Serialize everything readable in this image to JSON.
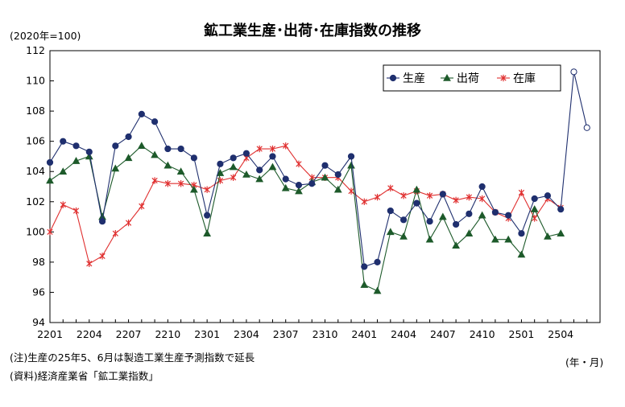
{
  "chart_data": {
    "type": "line",
    "title": "鉱工業生産･出荷･在庫指数の推移",
    "unit_label": "(2020年=100)",
    "x_axis_label": "(年・月)",
    "notes": [
      "(注)生産の25年5、6月は製造工業生産予測指数で延長",
      "(資料)経済産業省「鉱工業指数」"
    ],
    "ylim": [
      94,
      112
    ],
    "yticks": [
      94,
      96,
      98,
      100,
      102,
      104,
      106,
      108,
      110,
      112
    ],
    "grid": false,
    "legend_position": "top-right",
    "categories": [
      "2201",
      "2202",
      "2203",
      "2204",
      "2205",
      "2206",
      "2207",
      "2208",
      "2209",
      "2210",
      "2211",
      "2212",
      "2301",
      "2302",
      "2303",
      "2304",
      "2305",
      "2306",
      "2307",
      "2308",
      "2309",
      "2310",
      "2311",
      "2312",
      "2401",
      "2402",
      "2403",
      "2404",
      "2405",
      "2406",
      "2407",
      "2408",
      "2409",
      "2410",
      "2411",
      "2412",
      "2501",
      "2502",
      "2503",
      "2504",
      "2505",
      "2506"
    ],
    "xtick_labels": [
      "2201",
      "2204",
      "2207",
      "2210",
      "2301",
      "2304",
      "2307",
      "2310",
      "2401",
      "2404",
      "2407",
      "2410",
      "2501",
      "2504"
    ],
    "forecast_note_months": [
      "2505",
      "2506"
    ],
    "series": [
      {
        "name": "生産",
        "color": "#1f2f6e",
        "marker": "circle",
        "values": [
          104.6,
          106.0,
          105.7,
          105.3,
          100.7,
          105.7,
          106.3,
          107.8,
          107.3,
          105.5,
          105.5,
          104.9,
          101.1,
          104.5,
          104.9,
          105.2,
          104.1,
          105.0,
          103.5,
          103.1,
          103.2,
          104.4,
          103.8,
          105.0,
          97.7,
          98.0,
          101.4,
          100.8,
          101.9,
          100.7,
          102.5,
          100.5,
          101.2,
          103.0,
          101.3,
          101.1,
          99.9,
          102.2,
          102.4,
          101.5,
          110.6,
          106.9
        ]
      },
      {
        "name": "出荷",
        "color": "#1d5a2a",
        "marker": "triangle",
        "values": [
          103.4,
          104.0,
          104.7,
          105.0,
          101.0,
          104.2,
          104.9,
          105.7,
          105.1,
          104.4,
          104.0,
          102.8,
          99.9,
          103.9,
          104.3,
          103.8,
          103.5,
          104.3,
          102.9,
          102.7,
          103.3,
          103.6,
          102.8,
          104.4,
          96.5,
          96.1,
          100.0,
          99.7,
          102.8,
          99.5,
          101.0,
          99.1,
          99.9,
          101.1,
          99.5,
          99.5,
          98.5,
          101.5,
          99.7,
          99.9,
          null,
          null
        ]
      },
      {
        "name": "在庫",
        "color": "#e03030",
        "marker": "x",
        "values": [
          100.0,
          101.8,
          101.4,
          97.9,
          98.4,
          99.9,
          100.6,
          101.7,
          103.4,
          103.2,
          103.2,
          103.1,
          102.8,
          103.4,
          103.6,
          104.9,
          105.5,
          105.5,
          105.7,
          104.5,
          103.6,
          103.6,
          103.6,
          102.7,
          102.0,
          102.3,
          102.9,
          102.4,
          102.7,
          102.4,
          102.5,
          102.1,
          102.3,
          102.2,
          101.3,
          100.9,
          102.6,
          100.9,
          102.2,
          101.6,
          null,
          null
        ]
      }
    ]
  }
}
